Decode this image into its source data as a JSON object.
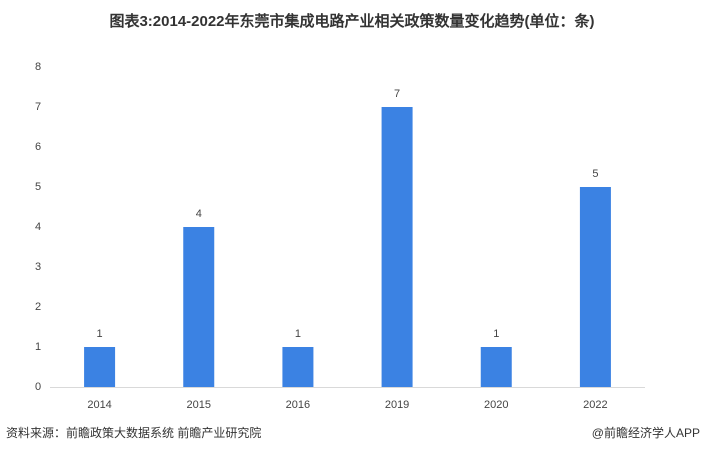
{
  "chart_data": {
    "type": "bar",
    "title": "图表3:2014-2022年东莞市集成电路产业相关政策数量变化趋势(单位：条)",
    "categories": [
      "2014",
      "2015",
      "2016",
      "2019",
      "2020",
      "2022"
    ],
    "values": [
      1,
      4,
      1,
      7,
      1,
      5
    ],
    "color": "#3b82e3",
    "ylim": [
      0,
      8
    ],
    "yticks": [
      0,
      1,
      2,
      3,
      4,
      5,
      6,
      7,
      8
    ],
    "grid": false,
    "source": "资料来源：前瞻政策大数据系统 前瞻产业研究院",
    "credit": "@前瞻经济学人APP"
  }
}
